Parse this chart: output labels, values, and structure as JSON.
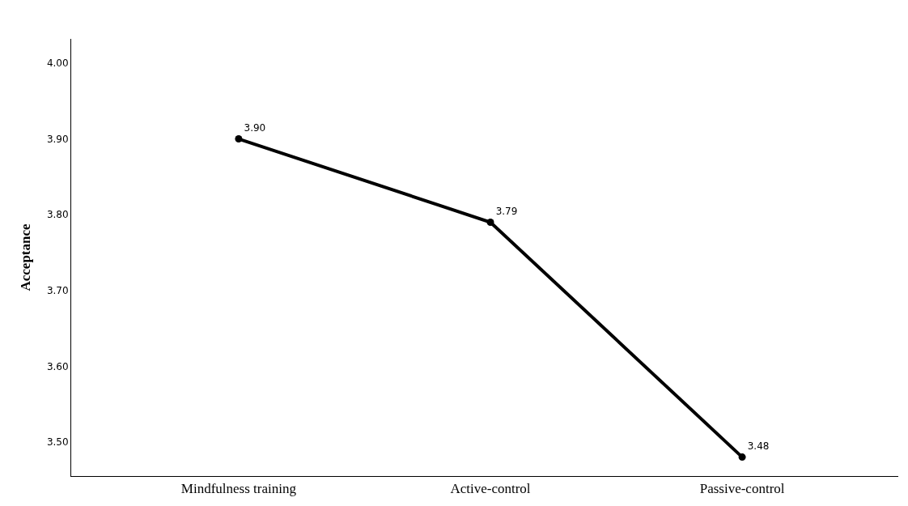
{
  "chart_data": {
    "type": "line",
    "ylabel": "Acceptance",
    "categories": [
      "Mindfulness training",
      "Active-control",
      "Passive-control"
    ],
    "series": [
      {
        "color": "#000000",
        "values": [
          3.9,
          3.79,
          3.48
        ],
        "value_labels": [
          "3.90",
          "3.79",
          "3.48"
        ]
      }
    ],
    "ylim": [
      3.455,
      4.032
    ],
    "yticks": [
      {
        "value": 3.5,
        "label": "3.50"
      },
      {
        "value": 3.6,
        "label": "3.60"
      },
      {
        "value": 3.7,
        "label": "3.70"
      },
      {
        "value": 3.8,
        "label": "3.80"
      },
      {
        "value": 3.9,
        "label": "3.90"
      },
      {
        "value": 4.0,
        "label": "4.00"
      }
    ],
    "legend": false,
    "marker": "circle",
    "line_style": "solid"
  }
}
